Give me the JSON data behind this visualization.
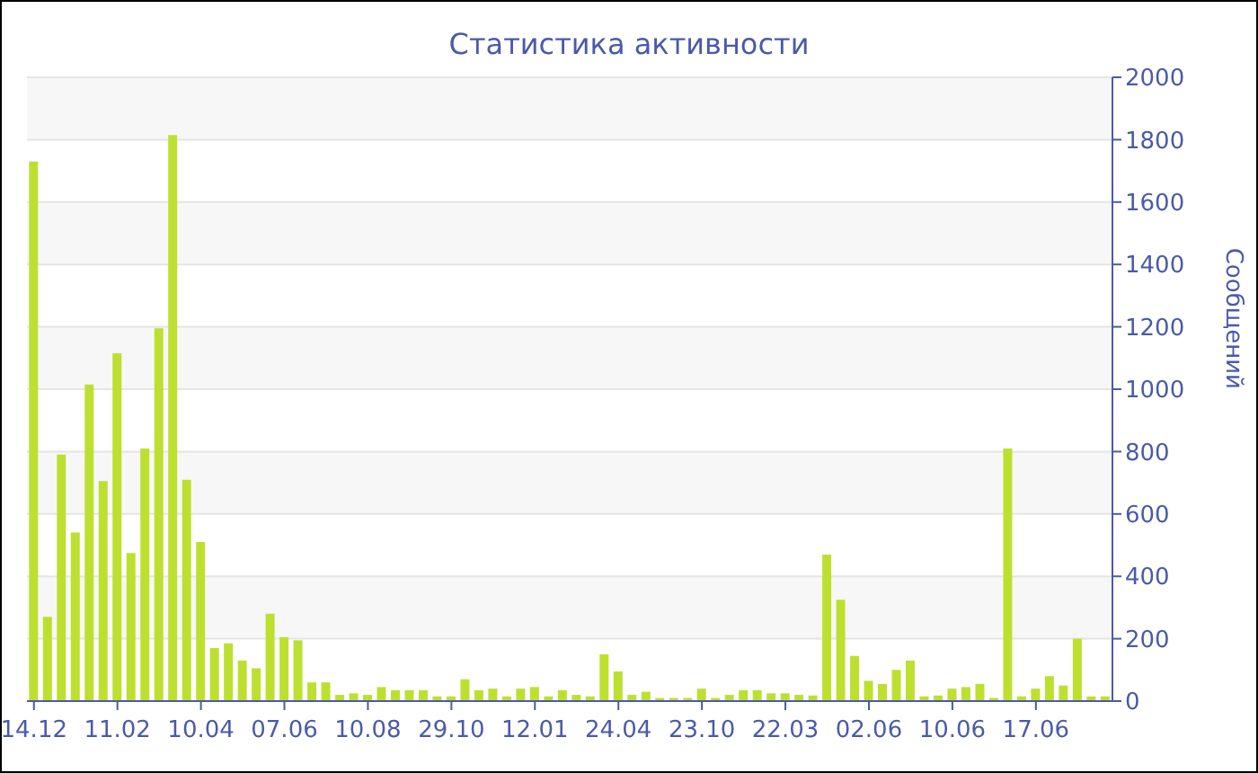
{
  "chart_data": {
    "type": "bar",
    "title": "Статистика активности",
    "ylabel": "Сообщений",
    "categories": [
      "14.12",
      null,
      null,
      null,
      null,
      null,
      "11.02",
      null,
      null,
      null,
      null,
      null,
      "10.04",
      null,
      null,
      null,
      null,
      null,
      "07.06",
      null,
      null,
      null,
      null,
      null,
      "10.08",
      null,
      null,
      null,
      null,
      null,
      "29.10",
      null,
      null,
      null,
      null,
      null,
      "12.01",
      null,
      null,
      null,
      null,
      null,
      "24.04",
      null,
      null,
      null,
      null,
      null,
      "23.10",
      null,
      null,
      null,
      null,
      null,
      "22.03",
      null,
      null,
      null,
      null,
      null,
      "02.06",
      null,
      null,
      null,
      null,
      null,
      "10.06",
      null,
      null,
      null,
      null,
      null,
      "17.06",
      null,
      null,
      null,
      null,
      null
    ],
    "values": [
      1730,
      270,
      790,
      540,
      1015,
      705,
      1115,
      475,
      810,
      1195,
      1815,
      710,
      510,
      170,
      185,
      130,
      105,
      280,
      205,
      195,
      60,
      60,
      20,
      25,
      20,
      45,
      35,
      35,
      35,
      15,
      15,
      70,
      35,
      40,
      15,
      40,
      45,
      15,
      35,
      20,
      15,
      150,
      95,
      20,
      30,
      10,
      10,
      10,
      40,
      10,
      20,
      35,
      35,
      25,
      25,
      20,
      18,
      470,
      325,
      145,
      65,
      55,
      100,
      130,
      15,
      18,
      40,
      45,
      55,
      10,
      810,
      15,
      40,
      80,
      50,
      200,
      15,
      15
    ],
    "color": "#bde030",
    "ylim": [
      0,
      2000
    ],
    "yticks": [
      0,
      200,
      400,
      600,
      800,
      1000,
      1200,
      1400,
      1600,
      1800,
      2000
    ],
    "grid": "y"
  }
}
